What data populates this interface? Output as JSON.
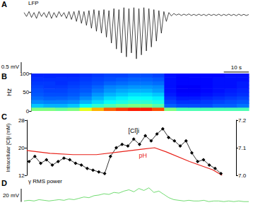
{
  "chart_data": [
    {
      "panel": "A",
      "type": "line",
      "title": "LFP",
      "color": "#000000",
      "xlim": [
        0,
        90
      ],
      "ylim": [
        -2.4,
        0.4
      ],
      "tick_labels": false,
      "scale_bars": [
        {
          "axis": "y",
          "value": 0.5,
          "label": "0.5 mV"
        },
        {
          "axis": "x",
          "value": 10,
          "label": "10 s"
        }
      ],
      "x": [
        0,
        1,
        2,
        3,
        4,
        5,
        6,
        7,
        8,
        9,
        10,
        11,
        12,
        13,
        14,
        15,
        16,
        17,
        18,
        19,
        20,
        21,
        22,
        23,
        24,
        25,
        26,
        27,
        28,
        29,
        30,
        31,
        32,
        33,
        34,
        35,
        36,
        37,
        38,
        39,
        40,
        41,
        42,
        43,
        44,
        45,
        46,
        47,
        48,
        49,
        50,
        51,
        52,
        53,
        54,
        55,
        56,
        57,
        58,
        59,
        60,
        61,
        62,
        63,
        64,
        65,
        66,
        67,
        68,
        69,
        70,
        71,
        72,
        73,
        74,
        75,
        76,
        77,
        78,
        79,
        80,
        81,
        82,
        83,
        84,
        85,
        86,
        87,
        88,
        89,
        90
      ],
      "values": [
        0.05,
        -0.15,
        0.1,
        -0.2,
        0.05,
        -0.25,
        0.1,
        -0.15,
        0.05,
        -0.2,
        0.1,
        -0.25,
        0.05,
        -0.2,
        0.1,
        -0.15,
        0.05,
        -0.25,
        0.1,
        -0.3,
        0.1,
        -0.4,
        0.15,
        -0.5,
        0.1,
        -0.6,
        0.15,
        -0.75,
        0.2,
        -0.9,
        0.15,
        -1.0,
        0.2,
        -1.2,
        0.15,
        -1.5,
        0.25,
        -1.8,
        0.2,
        -2.0,
        0.3,
        -2.2,
        0.25,
        -2.0,
        0.3,
        -2.3,
        0.25,
        -2.1,
        0.3,
        -1.9,
        0.25,
        -1.7,
        0.2,
        -1.4,
        0.15,
        -1.0,
        0.1,
        -0.4,
        0.05,
        -0.12,
        0.0,
        -0.08,
        -0.02,
        -0.1,
        -0.03,
        -0.09,
        -0.02,
        -0.1,
        -0.04,
        -0.1,
        -0.03,
        -0.1,
        -0.04,
        -0.11,
        -0.03,
        -0.1,
        -0.04,
        -0.1,
        -0.03,
        -0.11,
        -0.04,
        -0.1,
        -0.03,
        -0.1,
        -0.04,
        -0.11,
        -0.03,
        -0.1,
        -0.04,
        -0.1,
        -0.05
      ]
    },
    {
      "panel": "B",
      "type": "heatmap",
      "y_label": "Hz",
      "xlim": [
        0,
        90
      ],
      "ylim": [
        0,
        100
      ],
      "yticks": [
        0,
        50,
        100
      ],
      "tick_labels": "y",
      "color_range": [
        0,
        1
      ],
      "x_bins": [
        0,
        5,
        10,
        15,
        20,
        25,
        30,
        35,
        40,
        45,
        50,
        55,
        60,
        65,
        70,
        75,
        80,
        85,
        90
      ],
      "y_bins": [
        0,
        10,
        20,
        30,
        40,
        50,
        60,
        70,
        80,
        90,
        100
      ],
      "cells": [
        [
          0.5,
          0.5,
          0.48,
          0.5,
          0.6,
          0.7,
          0.78,
          0.82,
          0.85,
          0.85,
          0.8,
          0.5,
          0.45,
          0.45,
          0.45,
          0.45,
          0.45,
          0.45
        ],
        [
          0.32,
          0.3,
          0.3,
          0.32,
          0.38,
          0.42,
          0.45,
          0.48,
          0.5,
          0.5,
          0.46,
          0.22,
          0.2,
          0.2,
          0.2,
          0.22,
          0.22,
          0.24
        ],
        [
          0.26,
          0.25,
          0.25,
          0.26,
          0.3,
          0.34,
          0.38,
          0.4,
          0.42,
          0.42,
          0.4,
          0.19,
          0.17,
          0.17,
          0.18,
          0.19,
          0.2,
          0.21
        ],
        [
          0.23,
          0.22,
          0.22,
          0.23,
          0.26,
          0.3,
          0.34,
          0.36,
          0.38,
          0.38,
          0.36,
          0.17,
          0.15,
          0.15,
          0.16,
          0.17,
          0.18,
          0.19
        ],
        [
          0.21,
          0.2,
          0.2,
          0.21,
          0.23,
          0.27,
          0.3,
          0.32,
          0.34,
          0.34,
          0.32,
          0.15,
          0.13,
          0.13,
          0.14,
          0.15,
          0.16,
          0.17
        ],
        [
          0.2,
          0.19,
          0.19,
          0.2,
          0.21,
          0.24,
          0.27,
          0.29,
          0.3,
          0.3,
          0.28,
          0.14,
          0.12,
          0.12,
          0.13,
          0.14,
          0.15,
          0.16
        ],
        [
          0.19,
          0.18,
          0.18,
          0.19,
          0.2,
          0.22,
          0.25,
          0.26,
          0.27,
          0.27,
          0.26,
          0.14,
          0.12,
          0.12,
          0.13,
          0.14,
          0.14,
          0.15
        ],
        [
          0.18,
          0.18,
          0.17,
          0.18,
          0.19,
          0.2,
          0.22,
          0.23,
          0.24,
          0.24,
          0.23,
          0.14,
          0.13,
          0.13,
          0.13,
          0.14,
          0.14,
          0.15
        ],
        [
          0.17,
          0.17,
          0.17,
          0.17,
          0.18,
          0.19,
          0.2,
          0.21,
          0.22,
          0.22,
          0.21,
          0.14,
          0.13,
          0.13,
          0.13,
          0.14,
          0.14,
          0.14
        ],
        [
          0.16,
          0.16,
          0.16,
          0.16,
          0.17,
          0.18,
          0.19,
          0.19,
          0.2,
          0.2,
          0.19,
          0.14,
          0.13,
          0.13,
          0.13,
          0.13,
          0.14,
          0.14
        ]
      ]
    },
    {
      "panel": "C",
      "type": "line",
      "y_label": "Intracellular [Cl]i (mM)",
      "xlim": [
        0,
        90
      ],
      "ylim": [
        12,
        28
      ],
      "yticks": [
        12,
        20,
        28
      ],
      "y2lim": [
        7.0,
        7.2
      ],
      "y2ticks": [
        {
          "value": 7,
          "label": "7.0"
        },
        7.1,
        7.2
      ],
      "tick_labels": "y",
      "series": [
        {
          "name": "[Cl]i",
          "color": "#000000",
          "marker": "diamond",
          "x": [
            1,
            3.5,
            6,
            8.5,
            11,
            13.5,
            16,
            18.5,
            21,
            23.5,
            26,
            28.5,
            31,
            33.5,
            36,
            38.5,
            41,
            43.5,
            46,
            48.5,
            51,
            53.5,
            56,
            58.5,
            61,
            63.5,
            66,
            68.5,
            71,
            73.5,
            76,
            78.5,
            81,
            83.5
          ],
          "values": [
            16.0,
            17.5,
            15.5,
            16.5,
            15.0,
            16.0,
            17.0,
            16.5,
            15.5,
            15.0,
            14.0,
            13.5,
            13.0,
            12.5,
            17.5,
            20.0,
            21.0,
            20.5,
            22.5,
            21.0,
            23.5,
            22.0,
            24.0,
            25.5,
            23.0,
            22.0,
            20.5,
            22.0,
            18.5,
            16.0,
            16.5,
            15.0,
            14.0,
            12.5
          ]
        },
        {
          "name": "pH",
          "color": "#e8221a",
          "marker": "none",
          "axis": "y2",
          "x": [
            0,
            10,
            20,
            30,
            40,
            50,
            55,
            60,
            70,
            80,
            84
          ],
          "values": [
            7.09,
            7.08,
            7.075,
            7.075,
            7.085,
            7.095,
            7.1,
            7.085,
            7.05,
            7.02,
            7.0
          ]
        }
      ]
    },
    {
      "panel": "D",
      "type": "line",
      "title": "γ RMS power",
      "color": "#33cc33",
      "xlim": [
        0,
        90
      ],
      "ylim": [
        0,
        28
      ],
      "tick_labels": false,
      "scale_bars": [
        {
          "axis": "y",
          "value": 20,
          "label": "20 mV"
        }
      ],
      "x": [
        0,
        2,
        4,
        6,
        8,
        10,
        12,
        14,
        16,
        18,
        20,
        22,
        24,
        26,
        28,
        30,
        32,
        34,
        36,
        38,
        40,
        42,
        44,
        46,
        48,
        50,
        52,
        54,
        56,
        58,
        60,
        62,
        64,
        66,
        68,
        70,
        72,
        74,
        76,
        78,
        80,
        82,
        84,
        86,
        88,
        90
      ],
      "values": [
        4,
        5,
        4,
        6,
        5,
        4,
        5,
        6,
        5,
        7,
        6,
        8,
        10,
        9,
        12,
        13,
        15,
        14,
        17,
        16,
        19,
        21,
        18,
        23,
        20,
        24,
        17,
        19,
        14,
        9,
        6,
        5,
        4,
        5,
        4,
        4,
        5,
        3,
        4,
        4,
        3,
        4,
        3,
        4,
        3,
        3
      ]
    }
  ]
}
